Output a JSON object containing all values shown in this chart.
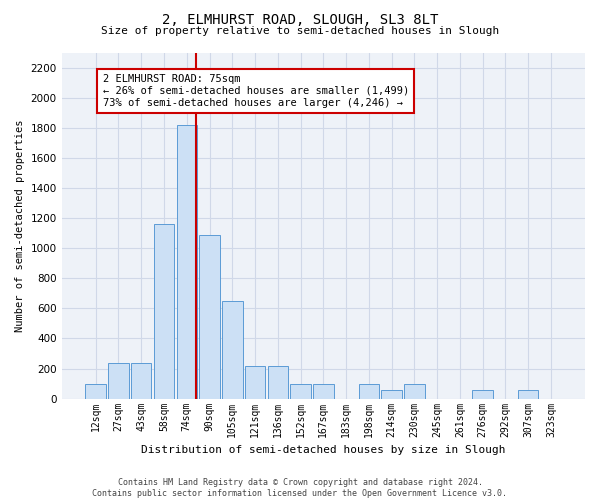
{
  "title": "2, ELMHURST ROAD, SLOUGH, SL3 8LT",
  "subtitle": "Size of property relative to semi-detached houses in Slough",
  "xlabel": "Distribution of semi-detached houses by size in Slough",
  "ylabel": "Number of semi-detached properties",
  "footer_line1": "Contains HM Land Registry data © Crown copyright and database right 2024.",
  "footer_line2": "Contains public sector information licensed under the Open Government Licence v3.0.",
  "annotation_title": "2 ELMHURST ROAD: 75sqm",
  "annotation_line1": "← 26% of semi-detached houses are smaller (1,499)",
  "annotation_line2": "73% of semi-detached houses are larger (4,246) →",
  "bar_labels": [
    "12sqm",
    "27sqm",
    "43sqm",
    "58sqm",
    "74sqm",
    "90sqm",
    "105sqm",
    "121sqm",
    "136sqm",
    "152sqm",
    "167sqm",
    "183sqm",
    "198sqm",
    "214sqm",
    "230sqm",
    "245sqm",
    "261sqm",
    "276sqm",
    "292sqm",
    "307sqm",
    "323sqm"
  ],
  "bar_values": [
    100,
    240,
    240,
    1160,
    1820,
    1090,
    650,
    220,
    220,
    100,
    100,
    0,
    100,
    60,
    100,
    0,
    0,
    60,
    0,
    60,
    0
  ],
  "bar_color": "#cce0f5",
  "bar_edge_color": "#5b9bd5",
  "vline_color": "#cc0000",
  "annotation_box_edge": "#cc0000",
  "grid_color": "#d0d8e8",
  "background_color": "#eef2f8",
  "ylim": [
    0,
    2300
  ],
  "yticks": [
    0,
    200,
    400,
    600,
    800,
    1000,
    1200,
    1400,
    1600,
    1800,
    2000,
    2200
  ],
  "vline_x_index": 4.42,
  "fig_width": 6.0,
  "fig_height": 5.0,
  "title_fontsize": 10,
  "subtitle_fontsize": 8,
  "ylabel_fontsize": 7.5,
  "xlabel_fontsize": 8,
  "xtick_fontsize": 7,
  "ytick_fontsize": 7.5,
  "footer_fontsize": 6,
  "annot_fontsize": 7.5
}
